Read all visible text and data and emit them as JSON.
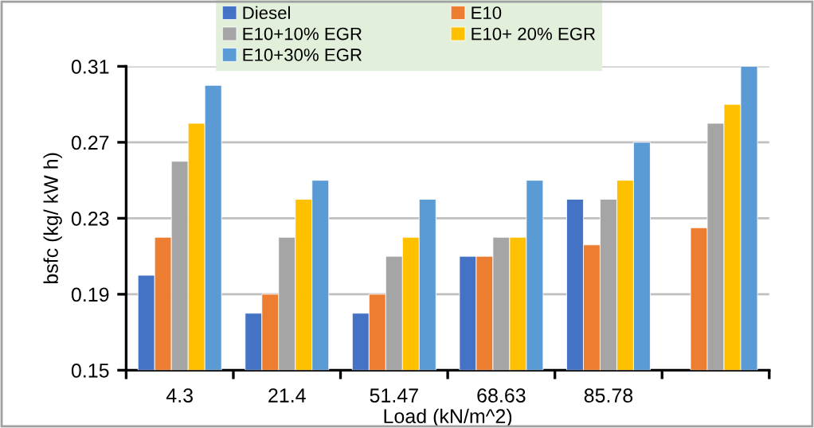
{
  "chart_data": {
    "type": "bar",
    "xlabel": "Load (kN/m^2)",
    "ylabel": "bsfc (kg/ kW h)",
    "categories": [
      "4.3",
      "21.4",
      "51.47",
      "68.63",
      "85.78",
      null
    ],
    "series": [
      {
        "name": "Diesel",
        "color": "#4472c4",
        "values": [
          0.2,
          0.18,
          0.18,
          0.21,
          0.24,
          null
        ]
      },
      {
        "name": "E10",
        "color": "#ed7d31",
        "values": [
          0.22,
          0.19,
          0.19,
          0.21,
          0.216,
          0.225
        ]
      },
      {
        "name": "E10+10% EGR",
        "color": "#a5a5a5",
        "values": [
          0.26,
          0.22,
          0.21,
          0.22,
          0.24,
          0.28
        ]
      },
      {
        "name": "E10+ 20% EGR",
        "color": "#ffc000",
        "values": [
          0.28,
          0.24,
          0.22,
          0.22,
          0.25,
          0.29
        ]
      },
      {
        "name": "E10+30% EGR",
        "color": "#5b9bd5",
        "values": [
          0.3,
          0.25,
          0.24,
          0.25,
          0.27,
          0.31
        ]
      }
    ],
    "ylim": [
      0.15,
      0.31
    ],
    "yticks": [
      0.15,
      0.19,
      0.23,
      0.27,
      0.31
    ],
    "grid": "y",
    "legend": "top"
  }
}
